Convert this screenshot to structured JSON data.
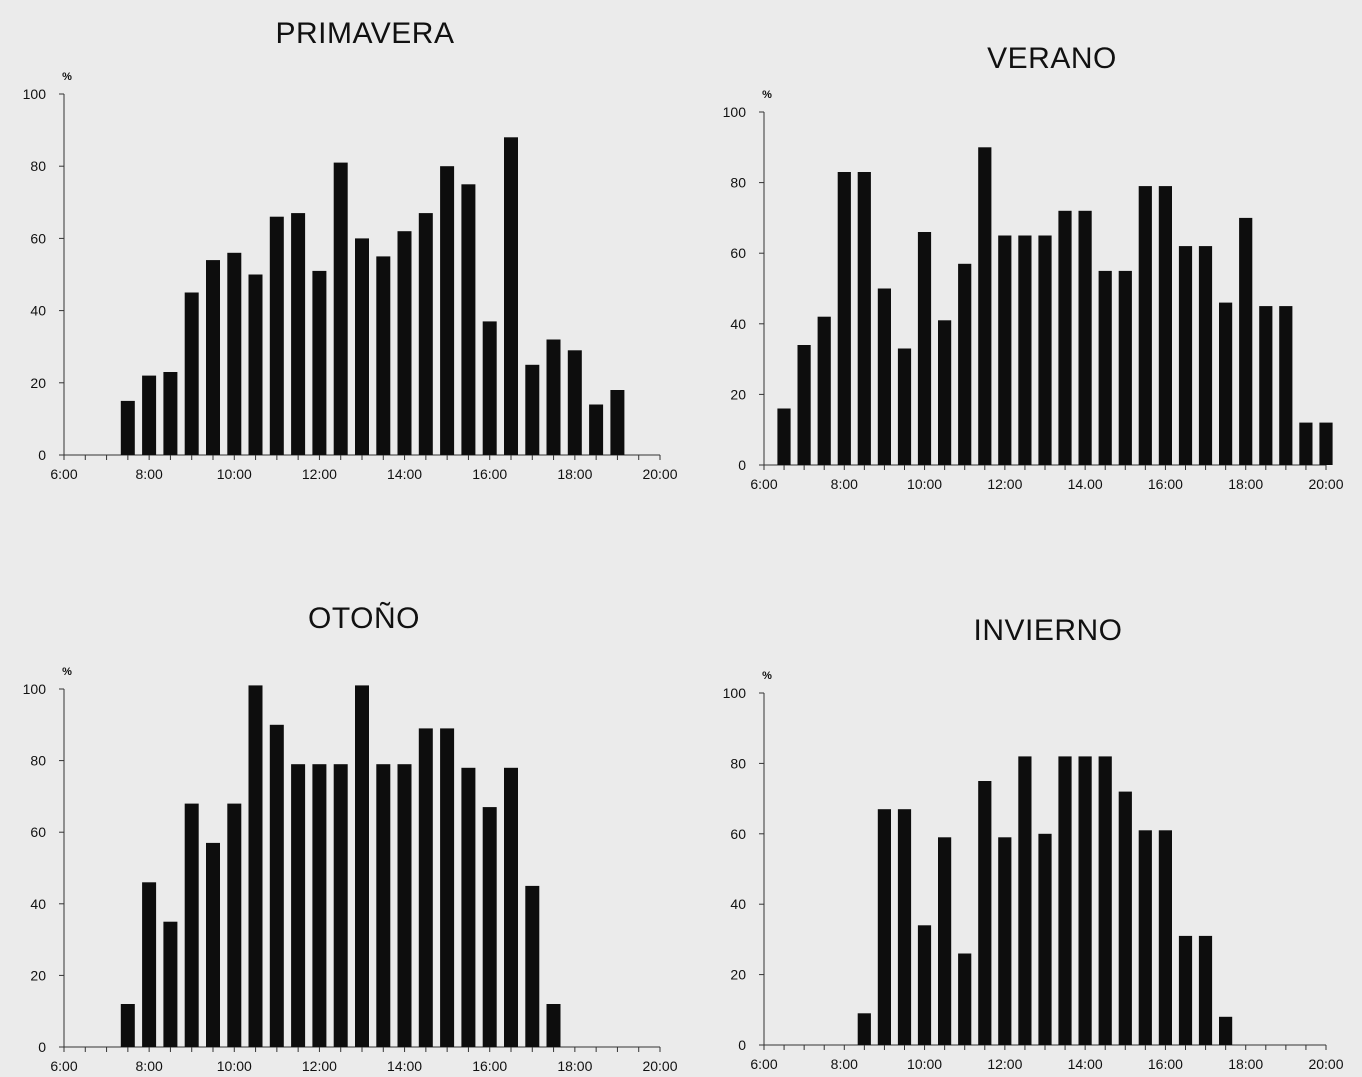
{
  "chart_data": [
    {
      "type": "bar",
      "title": "PRIMAVERA",
      "ylabel": "%",
      "ylim": [
        0,
        100
      ],
      "xlim": [
        6,
        20
      ],
      "y_ticks": [
        "0",
        "20",
        "40",
        "60",
        "80",
        "100"
      ],
      "x_ticks": [
        "6:00",
        "8:00",
        "10:00",
        "12:00",
        "14:00",
        "16:00",
        "18:00",
        "20:00"
      ],
      "x": [
        7.5,
        8.0,
        8.5,
        9.0,
        9.5,
        10.0,
        10.5,
        11.0,
        11.5,
        12.0,
        12.5,
        13.0,
        13.5,
        14.0,
        14.5,
        15.0,
        15.5,
        16.0,
        16.5,
        17.0,
        17.5,
        18.0,
        18.5,
        19.0
      ],
      "values": [
        15,
        22,
        23,
        45,
        54,
        56,
        50,
        66,
        67,
        51,
        81,
        60,
        55,
        62,
        67,
        80,
        75,
        37,
        88,
        25,
        32,
        29,
        14,
        18
      ]
    },
    {
      "type": "bar",
      "title": "VERANO",
      "ylabel": "%",
      "ylim": [
        0,
        100
      ],
      "xlim": [
        6,
        20
      ],
      "y_ticks": [
        "0",
        "20",
        "40",
        "60",
        "80",
        "100"
      ],
      "x_ticks": [
        "6:00",
        "8:00",
        "10:00",
        "12:00",
        "14.00",
        "16:00",
        "18:00",
        "20:00"
      ],
      "x": [
        6.5,
        7.0,
        7.5,
        8.0,
        8.5,
        9.0,
        9.5,
        10.0,
        10.5,
        11.0,
        11.5,
        12.0,
        12.5,
        13.0,
        13.5,
        14.0,
        14.5,
        15.0,
        15.5,
        16.0,
        16.5,
        17.0,
        17.5,
        18.0,
        18.5,
        19.0,
        19.5,
        20.0
      ],
      "values": [
        16,
        34,
        42,
        83,
        83,
        50,
        33,
        66,
        41,
        57,
        90,
        65,
        65,
        65,
        72,
        72,
        55,
        55,
        79,
        79,
        62,
        62,
        46,
        70,
        45,
        45,
        12,
        12
      ]
    },
    {
      "type": "bar",
      "title": "OTOÑO",
      "ylabel": "%",
      "ylim": [
        0,
        100
      ],
      "xlim": [
        6,
        20
      ],
      "y_ticks": [
        "0",
        "20",
        "40",
        "60",
        "80",
        "100"
      ],
      "x_ticks": [
        "6:00",
        "8:00",
        "10:00",
        "12:00",
        "14:00",
        "16:00",
        "18:00",
        "20:00"
      ],
      "x": [
        7.5,
        8.0,
        8.5,
        9.0,
        9.5,
        10.0,
        10.5,
        11.0,
        11.5,
        12.0,
        12.5,
        13.0,
        13.5,
        14.0,
        14.5,
        15.0,
        15.5,
        16.0,
        16.5,
        17.0,
        17.5
      ],
      "values": [
        12,
        46,
        35,
        68,
        57,
        68,
        101,
        90,
        79,
        79,
        79,
        101,
        79,
        79,
        89,
        89,
        78,
        67,
        78,
        45,
        12
      ]
    },
    {
      "type": "bar",
      "title": "INVIERNO",
      "ylabel": "%",
      "ylim": [
        0,
        100
      ],
      "xlim": [
        6,
        20
      ],
      "y_ticks": [
        "0",
        "20",
        "40",
        "60",
        "80",
        "100"
      ],
      "x_ticks": [
        "6:00",
        "8:00",
        "10:00",
        "12:00",
        "14:00",
        "16:00",
        "18:00",
        "20:00"
      ],
      "x": [
        8.5,
        9.0,
        9.5,
        10.0,
        10.5,
        11.0,
        11.5,
        12.0,
        12.5,
        13.0,
        13.5,
        14.0,
        14.5,
        15.0,
        15.5,
        16.0,
        16.5,
        17.0,
        17.5
      ],
      "values": [
        9,
        67,
        67,
        34,
        59,
        26,
        75,
        59,
        82,
        60,
        82,
        82,
        82,
        72,
        61,
        61,
        31,
        31,
        8
      ]
    }
  ]
}
